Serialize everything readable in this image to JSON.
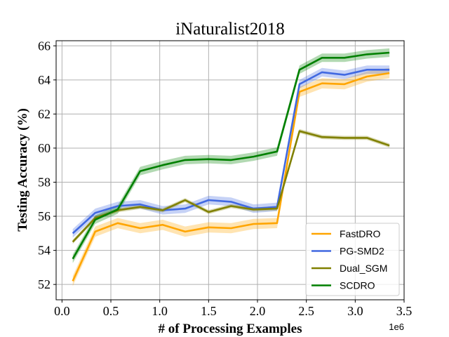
{
  "chart_data": {
    "type": "line",
    "title": "iNaturalist2018",
    "xlabel": "# of Processing Examples",
    "ylabel": "Testing Accuracy (%)",
    "x_offset_label": "1e6",
    "xlim": [
      -0.06,
      3.5
    ],
    "ylim": [
      51.1,
      66.3
    ],
    "xticks": [
      0.0,
      0.5,
      1.0,
      1.5,
      2.0,
      2.5,
      3.0,
      3.5
    ],
    "xtick_labels": [
      "0.0",
      "0.5",
      "1.0",
      "1.5",
      "2.0",
      "2.5",
      "3.0",
      "3.5"
    ],
    "yticks": [
      52,
      54,
      56,
      58,
      60,
      62,
      64,
      66
    ],
    "ytick_labels": [
      "52",
      "54",
      "56",
      "58",
      "60",
      "62",
      "64",
      "66"
    ],
    "grid": true,
    "legend_position": "lower-right",
    "x": [
      0.11,
      0.34,
      0.57,
      0.8,
      1.03,
      1.26,
      1.5,
      1.73,
      1.96,
      2.2,
      2.43,
      2.66,
      2.89,
      3.12,
      3.35
    ],
    "series": [
      {
        "name": "FastDRO",
        "color": "#ffa500",
        "values": [
          52.2,
          55.1,
          55.6,
          55.3,
          55.5,
          55.1,
          55.35,
          55.3,
          55.55,
          55.6,
          63.3,
          63.8,
          63.75,
          64.2,
          64.4
        ],
        "band": 0.3
      },
      {
        "name": "PG-SMD2",
        "color": "#4169e1",
        "values": [
          55.0,
          56.2,
          56.6,
          56.7,
          56.35,
          56.45,
          56.95,
          56.85,
          56.45,
          56.55,
          63.75,
          64.45,
          64.3,
          64.6,
          64.6
        ],
        "band": 0.25
      },
      {
        "name": "Dual_SGM",
        "color": "#808000",
        "values": [
          54.5,
          55.9,
          56.35,
          56.55,
          56.35,
          56.95,
          56.25,
          56.6,
          56.4,
          56.45,
          61.0,
          60.65,
          60.6,
          60.6,
          60.15
        ],
        "band": 0.12
      },
      {
        "name": "SCDRO",
        "color": "#008000",
        "values": [
          53.5,
          55.8,
          56.4,
          58.65,
          59.0,
          59.3,
          59.35,
          59.3,
          59.5,
          59.8,
          64.6,
          65.3,
          65.3,
          65.5,
          65.6
        ],
        "band": 0.25
      }
    ]
  }
}
